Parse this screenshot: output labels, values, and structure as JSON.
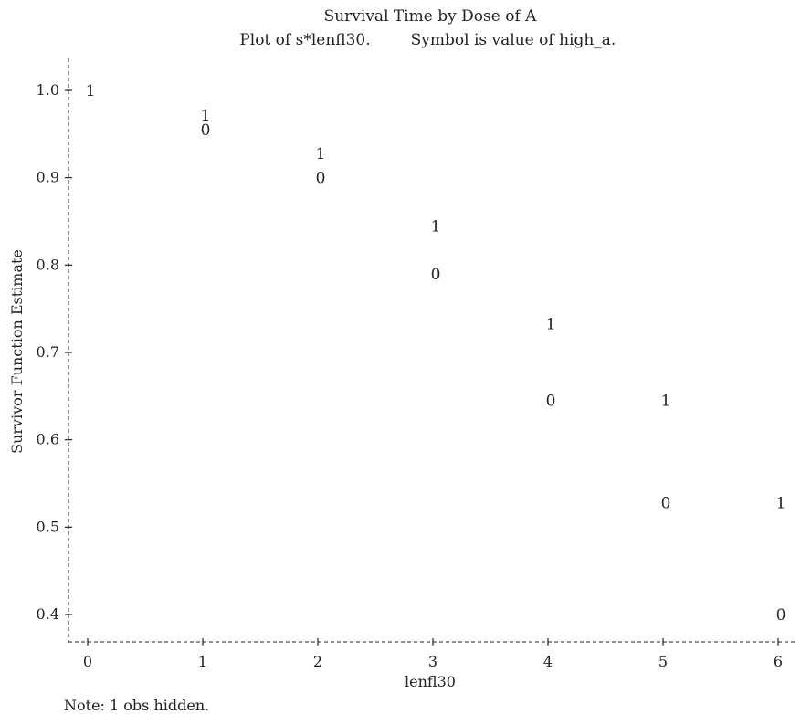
{
  "chart_data": {
    "type": "scatter",
    "title": "Survival Time by Dose of A",
    "subtitle_left": "Plot of s*lenfl30.",
    "subtitle_right": "Symbol is value of high_a.",
    "xlabel": "lenfl30",
    "ylabel": "Survivor Function Estimate",
    "xlim": [
      0,
      6
    ],
    "ylim": [
      0.4,
      1.0
    ],
    "x_ticks": [
      0,
      1,
      2,
      3,
      4,
      5,
      6
    ],
    "x_tick_labels": [
      "0",
      "1",
      "2",
      "3",
      "4",
      "5",
      "6"
    ],
    "y_ticks": [
      0.4,
      0.5,
      0.6,
      0.7,
      0.8,
      0.9,
      1.0
    ],
    "y_tick_labels": [
      "0.4",
      "0.5",
      "0.6",
      "0.7",
      "0.8",
      "0.9",
      "1.0"
    ],
    "grid": false,
    "series": [
      {
        "name": "1",
        "symbol": "1",
        "x": [
          0,
          1,
          2,
          3,
          4,
          5,
          6
        ],
        "y": [
          1.0,
          0.972,
          0.928,
          0.845,
          0.733,
          0.645,
          0.528
        ]
      },
      {
        "name": "0",
        "symbol": "0",
        "x": [
          1,
          2,
          3,
          4,
          5,
          6
        ],
        "y": [
          0.955,
          0.9,
          0.79,
          0.645,
          0.528,
          0.4
        ]
      }
    ],
    "note": "Note: 1 obs hidden."
  }
}
